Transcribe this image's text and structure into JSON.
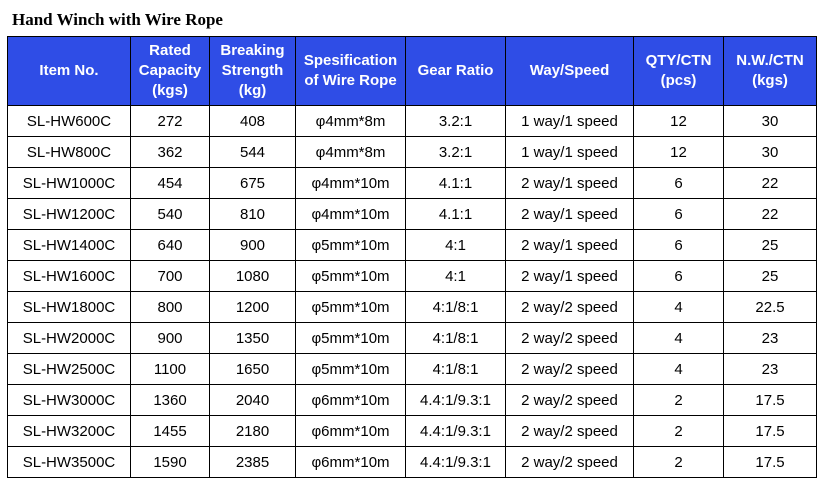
{
  "title": "Hand Winch with Wire Rope",
  "headers": [
    "Item No.",
    "Rated Capacity (kgs)",
    "Breaking Strength (kg)",
    "Spesification of Wire Rope",
    "Gear Ratio",
    "Way/Speed",
    "QTY/CTN (pcs)",
    "N.W./CTN (kgs)"
  ],
  "rows": [
    [
      "SL-HW600C",
      "272",
      "408",
      "φ4mm*8m",
      "3.2:1",
      "1 way/1 speed",
      "12",
      "30"
    ],
    [
      "SL-HW800C",
      "362",
      "544",
      "φ4mm*8m",
      "3.2:1",
      "1 way/1 speed",
      "12",
      "30"
    ],
    [
      "SL-HW1000C",
      "454",
      "675",
      "φ4mm*10m",
      "4.1:1",
      "2 way/1 speed",
      "6",
      "22"
    ],
    [
      "SL-HW1200C",
      "540",
      "810",
      "φ4mm*10m",
      "4.1:1",
      "2 way/1 speed",
      "6",
      "22"
    ],
    [
      "SL-HW1400C",
      "640",
      "900",
      "φ5mm*10m",
      "4:1",
      "2 way/1 speed",
      "6",
      "25"
    ],
    [
      "SL-HW1600C",
      "700",
      "1080",
      "φ5mm*10m",
      "4:1",
      "2 way/1 speed",
      "6",
      "25"
    ],
    [
      "SL-HW1800C",
      "800",
      "1200",
      "φ5mm*10m",
      "4:1/8:1",
      "2 way/2 speed",
      "4",
      "22.5"
    ],
    [
      "SL-HW2000C",
      "900",
      "1350",
      "φ5mm*10m",
      "4:1/8:1",
      "2 way/2 speed",
      "4",
      "23"
    ],
    [
      "SL-HW2500C",
      "1100",
      "1650",
      "φ5mm*10m",
      "4:1/8:1",
      "2 way/2 speed",
      "4",
      "23"
    ],
    [
      "SL-HW3000C",
      "1360",
      "2040",
      "φ6mm*10m",
      "4.4:1/9.3:1",
      "2 way/2 speed",
      "2",
      "17.5"
    ],
    [
      "SL-HW3200C",
      "1455",
      "2180",
      "φ6mm*10m",
      "4.4:1/9.3:1",
      "2 way/2 speed",
      "2",
      "17.5"
    ],
    [
      "SL-HW3500C",
      "1590",
      "2385",
      "φ6mm*10m",
      "4.4:1/9.3:1",
      "2 way/2 speed",
      "2",
      "17.5"
    ]
  ],
  "colors": {
    "header_bg": "#2f4de6",
    "header_text": "#ffffff",
    "border": "#000000"
  }
}
